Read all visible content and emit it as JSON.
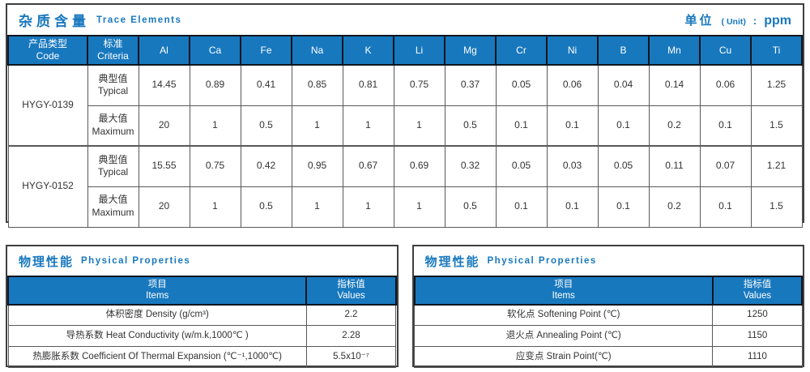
{
  "colors": {
    "accent_blue": "#1878be",
    "header_separator_dark": "#10151d",
    "grid_gray": "#595959",
    "outer_border": "#3f3f3f",
    "text_dark": "#333333"
  },
  "trace": {
    "title_cn": "杂质含量",
    "title_en": "Trace Elements",
    "unit_label_cn": "单位",
    "unit_label_en": "( Unit)",
    "unit_colon": ":",
    "unit_value": "ppm",
    "header": {
      "col_code_cn": "产品类型",
      "col_code_en": "Code",
      "col_criteria_cn": "标准",
      "col_criteria_en": "Criteria"
    },
    "elements": [
      "Al",
      "Ca",
      "Fe",
      "Na",
      "K",
      "Li",
      "Mg",
      "Cr",
      "Ni",
      "B",
      "Mn",
      "Cu",
      "Ti"
    ],
    "products": [
      {
        "code": "HYGY-0139",
        "rows": [
          {
            "criteria_cn": "典型值",
            "criteria_en": "Typical",
            "values": [
              "14.45",
              "0.89",
              "0.41",
              "0.85",
              "0.81",
              "0.75",
              "0.37",
              "0.05",
              "0.06",
              "0.04",
              "0.14",
              "0.06",
              "1.25"
            ]
          },
          {
            "criteria_cn": "最大值",
            "criteria_en": "Maximum",
            "values": [
              "20",
              "1",
              "0.5",
              "1",
              "1",
              "1",
              "0.5",
              "0.1",
              "0.1",
              "0.1",
              "0.2",
              "0.1",
              "1.5"
            ]
          }
        ]
      },
      {
        "code": "HYGY-0152",
        "rows": [
          {
            "criteria_cn": "典型值",
            "criteria_en": "Typical",
            "values": [
              "15.55",
              "0.75",
              "0.42",
              "0.95",
              "0.67",
              "0.69",
              "0.32",
              "0.05",
              "0.03",
              "0.05",
              "0.11",
              "0.07",
              "1.21"
            ]
          },
          {
            "criteria_cn": "最大值",
            "criteria_en": "Maximum",
            "values": [
              "20",
              "1",
              "0.5",
              "1",
              "1",
              "1",
              "0.5",
              "0.1",
              "0.1",
              "0.1",
              "0.2",
              "0.1",
              "1.5"
            ]
          }
        ]
      }
    ]
  },
  "physical_panels": [
    {
      "title_cn": "物理性能",
      "title_en": "Physical Properties",
      "col_item_cn": "项目",
      "col_item_en": "Items",
      "col_value_cn": "指标值",
      "col_value_en": "Values",
      "rows": [
        {
          "item": "体积密度 Density (g/cm³)",
          "value": "2.2"
        },
        {
          "item": "导热系数 Heat Conductivity (w/m.k,1000℃ )",
          "value": "2.28"
        },
        {
          "item": "热膨胀系数 Coefficient Of Thermal Expansion (℃⁻¹,1000℃)",
          "value": "5.5x10⁻⁷"
        }
      ]
    },
    {
      "title_cn": "物理性能",
      "title_en": "Physical Properties",
      "col_item_cn": "项目",
      "col_item_en": "Items",
      "col_value_cn": "指标值",
      "col_value_en": "Values",
      "rows": [
        {
          "item": "软化点 Softening Point (℃)",
          "value": "1250"
        },
        {
          "item": "退火点 Annealing Point (℃)",
          "value": "1150"
        },
        {
          "item": "应变点 Strain Point(℃)",
          "value": "1110"
        }
      ]
    }
  ]
}
